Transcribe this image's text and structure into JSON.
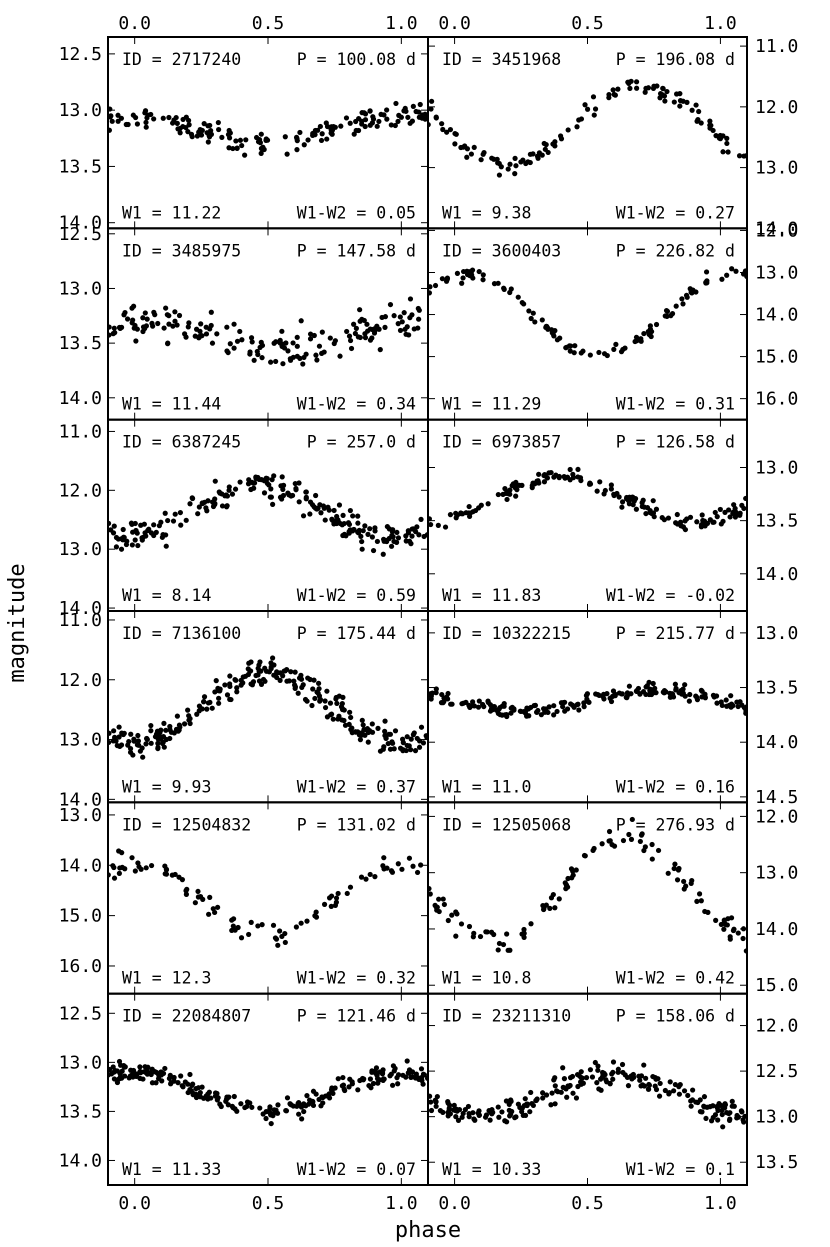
{
  "figure": {
    "ylabel": "magnitude",
    "xlabel": "phase",
    "x_ticks": [
      0.0,
      0.5,
      1.0
    ],
    "x_tick_labels": [
      "0.0",
      "0.5",
      "1.0"
    ]
  },
  "chart_data": [
    {
      "type": "scatter",
      "id": "2717240",
      "period": "100.08 d",
      "w1": "11.22",
      "w1w2": "0.05",
      "id_text": "ID = 2717240",
      "p_text": "P = 100.08 d",
      "w1_text": "W1 = 11.22",
      "w1w2_text": "W1-W2 = 0.05",
      "xlim": [
        -0.1,
        1.1
      ],
      "ylim": [
        14.05,
        12.35
      ],
      "yticks": [
        12.5,
        13.0,
        13.5,
        14.0
      ],
      "ytick_labels": [
        "12.5",
        "13.0",
        "13.5",
        "14.0"
      ],
      "axis_side": "left",
      "amp": 0.13,
      "mid": 13.18,
      "sigma": 0.05,
      "shape": "sine",
      "min_phase": 0.5,
      "n": 160
    },
    {
      "type": "scatter",
      "id": "3451968",
      "period": "196.08 d",
      "w1": "9.38",
      "w1w2": "0.27",
      "id_text": "ID = 3451968",
      "p_text": "P = 196.08 d",
      "w1_text": "W1 = 9.38",
      "w1w2_text": "W1-W2 = 0.27",
      "xlim": [
        -0.1,
        1.1
      ],
      "ylim": [
        14.0,
        10.85
      ],
      "yticks": [
        11.0,
        12.0,
        13.0,
        14.0
      ],
      "ytick_labels": [
        "11.0",
        "12.0",
        "13.0",
        "14.0"
      ],
      "axis_side": "right",
      "amp": 0.65,
      "mid": 12.3,
      "sigma": 0.07,
      "shape": "sine",
      "min_phase": 0.2,
      "n": 120
    },
    {
      "type": "scatter",
      "id": "3485975",
      "period": "147.58 d",
      "w1": "11.44",
      "w1w2": "0.34",
      "id_text": "ID = 3485975",
      "p_text": "P = 147.58 d",
      "w1_text": "W1 = 11.44",
      "w1w2_text": "W1-W2 = 0.34",
      "xlim": [
        -0.1,
        1.1
      ],
      "ylim": [
        14.2,
        12.45
      ],
      "yticks": [
        12.5,
        13.0,
        13.5,
        14.0
      ],
      "ytick_labels": [
        "12.5",
        "13.0",
        "13.5",
        "14.0"
      ],
      "axis_side": "left",
      "amp": 0.12,
      "mid": 13.42,
      "sigma": 0.08,
      "shape": "sine",
      "min_phase": 0.55,
      "n": 170
    },
    {
      "type": "scatter",
      "id": "3600403",
      "period": "226.82 d",
      "w1": "11.29",
      "w1w2": "0.31",
      "id_text": "ID = 3600403",
      "p_text": "P = 226.82 d",
      "w1_text": "W1 = 11.29",
      "w1w2_text": "W1-W2 = 0.31",
      "xlim": [
        -0.1,
        1.1
      ],
      "ylim": [
        16.5,
        11.95
      ],
      "yticks": [
        12.0,
        13.0,
        14.0,
        15.0,
        16.0
      ],
      "ytick_labels": [
        "12.0",
        "13.0",
        "14.0",
        "15.0",
        "16.0"
      ],
      "axis_side": "right",
      "amp": 1.0,
      "mid": 14.0,
      "sigma": 0.08,
      "shape": "sine",
      "min_phase": 0.55,
      "n": 110
    },
    {
      "type": "scatter",
      "id": "6387245",
      "period": "257.0 d",
      "w1": "8.14",
      "w1w2": "0.59",
      "id_text": "ID = 6387245",
      "p_text": "P = 257.0 d",
      "w1_text": "W1 = 8.14",
      "w1w2_text": "W1-W2 = 0.59",
      "xlim": [
        -0.1,
        1.1
      ],
      "ylim": [
        14.05,
        10.8
      ],
      "yticks": [
        11.0,
        12.0,
        13.0,
        14.0
      ],
      "ytick_labels": [
        "11.0",
        "12.0",
        "13.0",
        "14.0"
      ],
      "axis_side": "left",
      "amp": 0.45,
      "mid": 12.35,
      "sigma": 0.12,
      "shape": "sine",
      "min_phase": 0.95,
      "n": 220
    },
    {
      "type": "scatter",
      "id": "6973857",
      "period": "126.58 d",
      "w1": "11.83",
      "w1w2": "-0.02",
      "id_text": "ID = 6973857",
      "p_text": "P = 126.58 d",
      "w1_text": "W1 = 11.83",
      "w1w2_text": "W1-W2 = -0.02",
      "xlim": [
        -0.1,
        1.1
      ],
      "ylim": [
        14.35,
        12.55
      ],
      "yticks": [
        13.0,
        13.5,
        14.0
      ],
      "ytick_labels": [
        "13.0",
        "13.5",
        "14.0"
      ],
      "axis_side": "right",
      "amp": 0.22,
      "mid": 13.3,
      "sigma": 0.04,
      "shape": "sine",
      "min_phase": 0.9,
      "n": 160
    },
    {
      "type": "scatter",
      "id": "7136100",
      "period": "175.44 d",
      "w1": "9.93",
      "w1w2": "0.37",
      "id_text": "ID = 7136100",
      "p_text": "P = 175.44 d",
      "w1_text": "W1 = 9.93",
      "w1w2_text": "W1-W2 = 0.37",
      "xlim": [
        -0.1,
        1.1
      ],
      "ylim": [
        14.05,
        10.85
      ],
      "yticks": [
        11.0,
        12.0,
        13.0,
        14.0
      ],
      "ytick_labels": [
        "11.0",
        "12.0",
        "13.0",
        "14.0"
      ],
      "axis_side": "left",
      "amp": 0.6,
      "mid": 12.45,
      "sigma": 0.12,
      "shape": "sine",
      "min_phase": 0.0,
      "n": 260
    },
    {
      "type": "scatter",
      "id": "10322215",
      "period": "215.77 d",
      "w1": "11.0",
      "w1w2": "0.16",
      "id_text": "ID = 10322215",
      "p_text": "P = 215.77 d",
      "w1_text": "W1 = 11.0",
      "w1w2_text": "W1-W2 = 0.16",
      "xlim": [
        -0.1,
        1.1
      ],
      "ylim": [
        14.55,
        12.8
      ],
      "yticks": [
        13.0,
        13.5,
        14.0,
        14.5
      ],
      "ytick_labels": [
        "13.0",
        "13.5",
        "14.0",
        "14.5"
      ],
      "axis_side": "right",
      "amp": 0.09,
      "mid": 13.62,
      "sigma": 0.03,
      "shape": "sine",
      "min_phase": 0.25,
      "n": 200
    },
    {
      "type": "scatter",
      "id": "12504832",
      "period": "131.02 d",
      "w1": "12.3",
      "w1w2": "0.32",
      "id_text": "ID = 12504832",
      "p_text": "P = 131.02 d",
      "w1_text": "W1 = 12.3",
      "w1w2_text": "W1-W2 = 0.32",
      "xlim": [
        -0.1,
        1.1
      ],
      "ylim": [
        16.55,
        12.75
      ],
      "yticks": [
        13.0,
        14.0,
        15.0,
        16.0
      ],
      "ytick_labels": [
        "13.0",
        "14.0",
        "15.0",
        "16.0"
      ],
      "axis_side": "left",
      "amp": 0.7,
      "mid": 14.7,
      "sigma": 0.1,
      "shape": "sine",
      "min_phase": 0.5,
      "n": 90
    },
    {
      "type": "scatter",
      "id": "12505068",
      "period": "276.93 d",
      "w1": "10.8",
      "w1w2": "0.42",
      "id_text": "ID = 12505068",
      "p_text": "P = 276.93 d",
      "w1_text": "W1 = 10.8",
      "w1w2_text": "W1-W2 = 0.42",
      "xlim": [
        -0.1,
        1.1
      ],
      "ylim": [
        15.15,
        11.75
      ],
      "yticks": [
        12.0,
        13.0,
        14.0,
        15.0
      ],
      "ytick_labels": [
        "12.0",
        "13.0",
        "14.0",
        "15.0"
      ],
      "axis_side": "right",
      "amp": 0.9,
      "mid": 13.3,
      "sigma": 0.12,
      "shape": "sine",
      "min_phase": 0.15,
      "n": 110
    },
    {
      "type": "scatter",
      "id": "22084807",
      "period": "121.46 d",
      "w1": "11.33",
      "w1w2": "0.07",
      "id_text": "ID = 22084807",
      "p_text": "P = 121.46 d",
      "w1_text": "W1 = 11.33",
      "w1w2_text": "W1-W2 = 0.07",
      "xlim": [
        -0.1,
        1.1
      ],
      "ylim": [
        14.25,
        12.3
      ],
      "yticks": [
        12.5,
        13.0,
        13.5,
        14.0
      ],
      "ytick_labels": [
        "12.5",
        "13.0",
        "13.5",
        "14.0"
      ],
      "axis_side": "left",
      "amp": 0.2,
      "mid": 13.3,
      "sigma": 0.05,
      "shape": "sine",
      "min_phase": 0.5,
      "n": 240
    },
    {
      "type": "scatter",
      "id": "23211310",
      "period": "158.06 d",
      "w1": "10.33",
      "w1w2": "0.1",
      "id_text": "ID = 23211310",
      "p_text": "P = 158.06 d",
      "w1_text": "W1 = 10.33",
      "w1w2_text": "W1-W2 = 0.1",
      "xlim": [
        -0.1,
        1.1
      ],
      "ylim": [
        13.75,
        11.65
      ],
      "yticks": [
        12.0,
        12.5,
        13.0,
        13.5
      ],
      "ytick_labels": [
        "12.0",
        "12.5",
        "13.0",
        "13.5"
      ],
      "axis_side": "right",
      "amp": 0.22,
      "mid": 12.75,
      "sigma": 0.07,
      "shape": "sine",
      "min_phase": 0.1,
      "n": 230
    }
  ]
}
